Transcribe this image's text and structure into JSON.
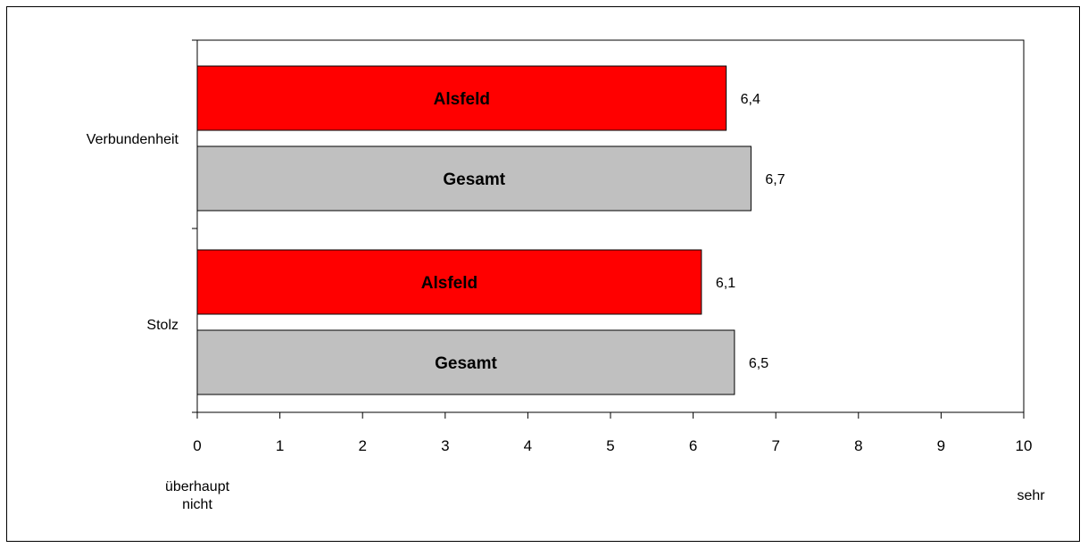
{
  "chart_data": {
    "type": "bar",
    "orientation": "horizontal",
    "categories": [
      "Verbundenheit",
      "Stolz"
    ],
    "series": [
      {
        "name": "Alsfeld",
        "color": "#ff0000",
        "values": [
          6.4,
          6.1
        ]
      },
      {
        "name": "Gesamt",
        "color": "#c0c0c0",
        "values": [
          6.7,
          6.5
        ]
      }
    ],
    "value_labels": [
      [
        "6,4",
        "6,1"
      ],
      [
        "6,7",
        "6,5"
      ]
    ],
    "xlim": [
      0,
      10
    ],
    "xticks": [
      "0",
      "1",
      "2",
      "3",
      "4",
      "5",
      "6",
      "7",
      "8",
      "9",
      "10"
    ],
    "scale_low_label": [
      "überhaupt",
      "nicht"
    ],
    "scale_high_label": "sehr",
    "grid": false,
    "legend": "none"
  }
}
